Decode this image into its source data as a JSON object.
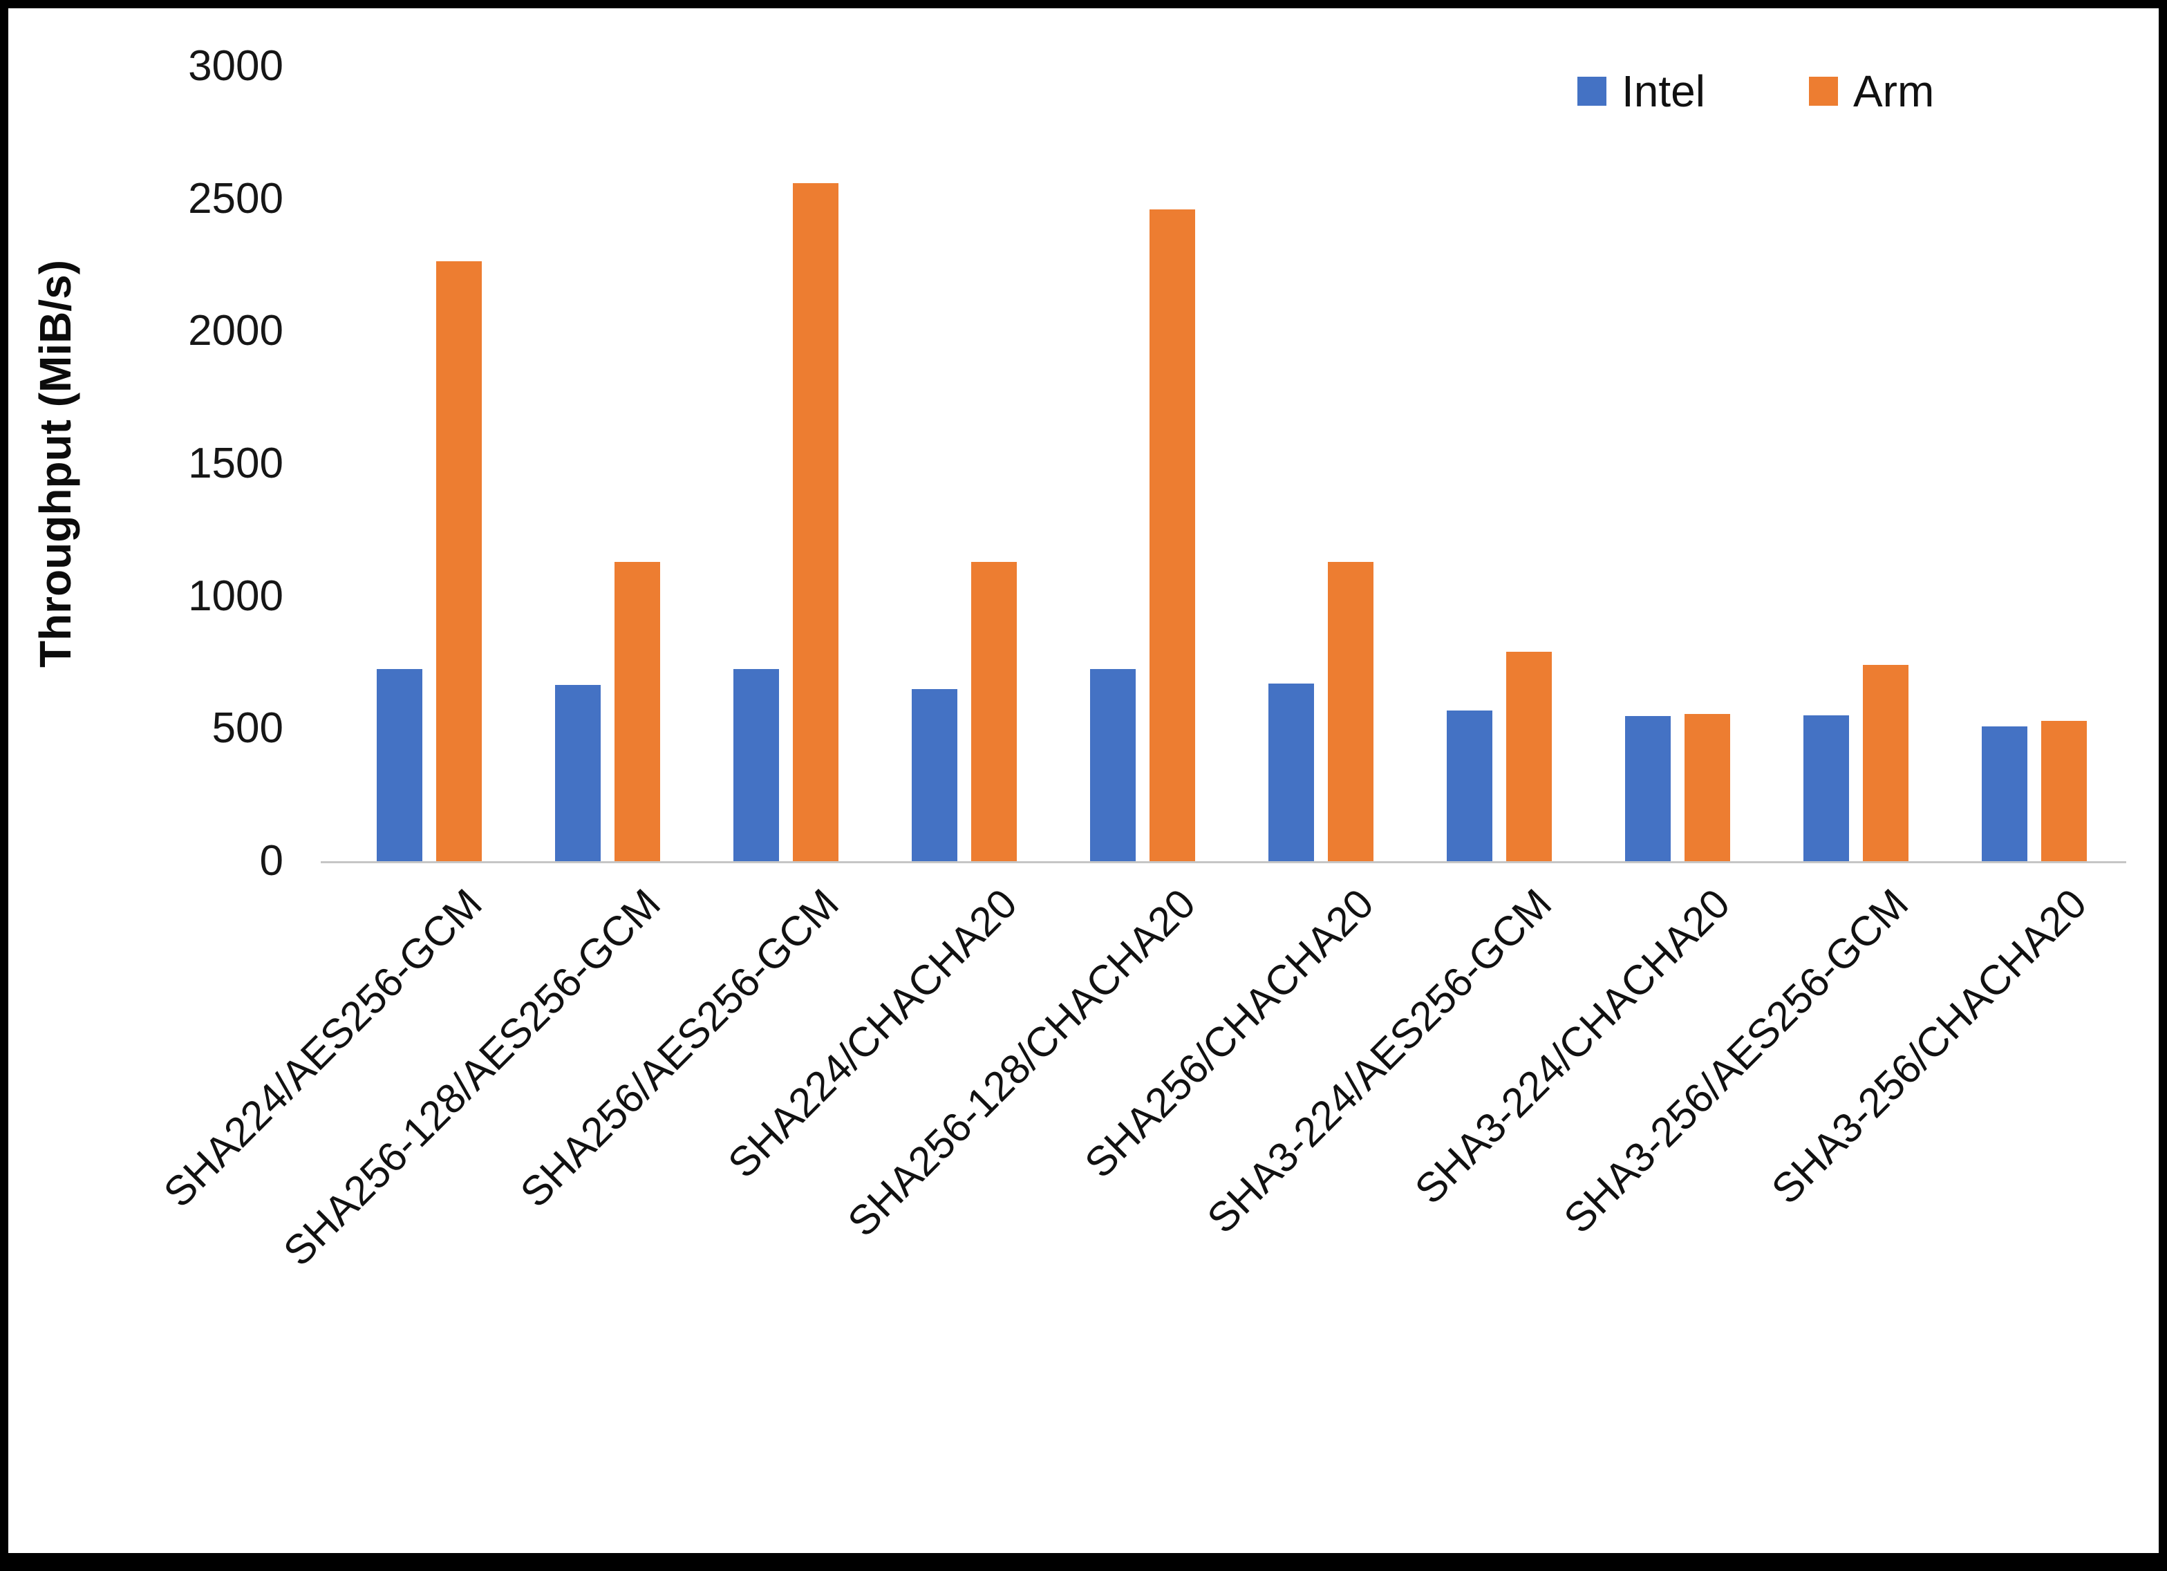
{
  "chart_data": {
    "type": "bar",
    "title": "",
    "xlabel": "",
    "ylabel": "Throughput (MiB/s)",
    "ylim": [
      0,
      3000
    ],
    "yticks": [
      0,
      500,
      1000,
      1500,
      2000,
      2500,
      3000
    ],
    "grid": false,
    "legend_position": "top-right",
    "categories": [
      "SHA224/AES256-GCM",
      "SHA256-128/AES256-GCM",
      "SHA256/AES256-GCM",
      "SHA224/CHACHA20",
      "SHA256-128/CHACHA20",
      "SHA256/CHACHA20",
      "SHA3-224/AES256-GCM",
      "SHA3-224/CHACHA20",
      "SHA3-256/AES256-GCM",
      "SHA3-256/CHACHA20"
    ],
    "series": [
      {
        "name": "Intel",
        "color": "#4472C4",
        "values": [
          725,
          665,
          725,
          650,
          725,
          670,
          570,
          548,
          550,
          510
        ]
      },
      {
        "name": "Arm",
        "color": "#ED7D31",
        "values": [
          2265,
          1130,
          2560,
          1130,
          2460,
          1130,
          790,
          555,
          740,
          530
        ]
      }
    ]
  },
  "colors": {
    "intel": "#4472C4",
    "arm": "#ED7D31",
    "axis_line": "#c6c6c6",
    "text": "#111111"
  }
}
